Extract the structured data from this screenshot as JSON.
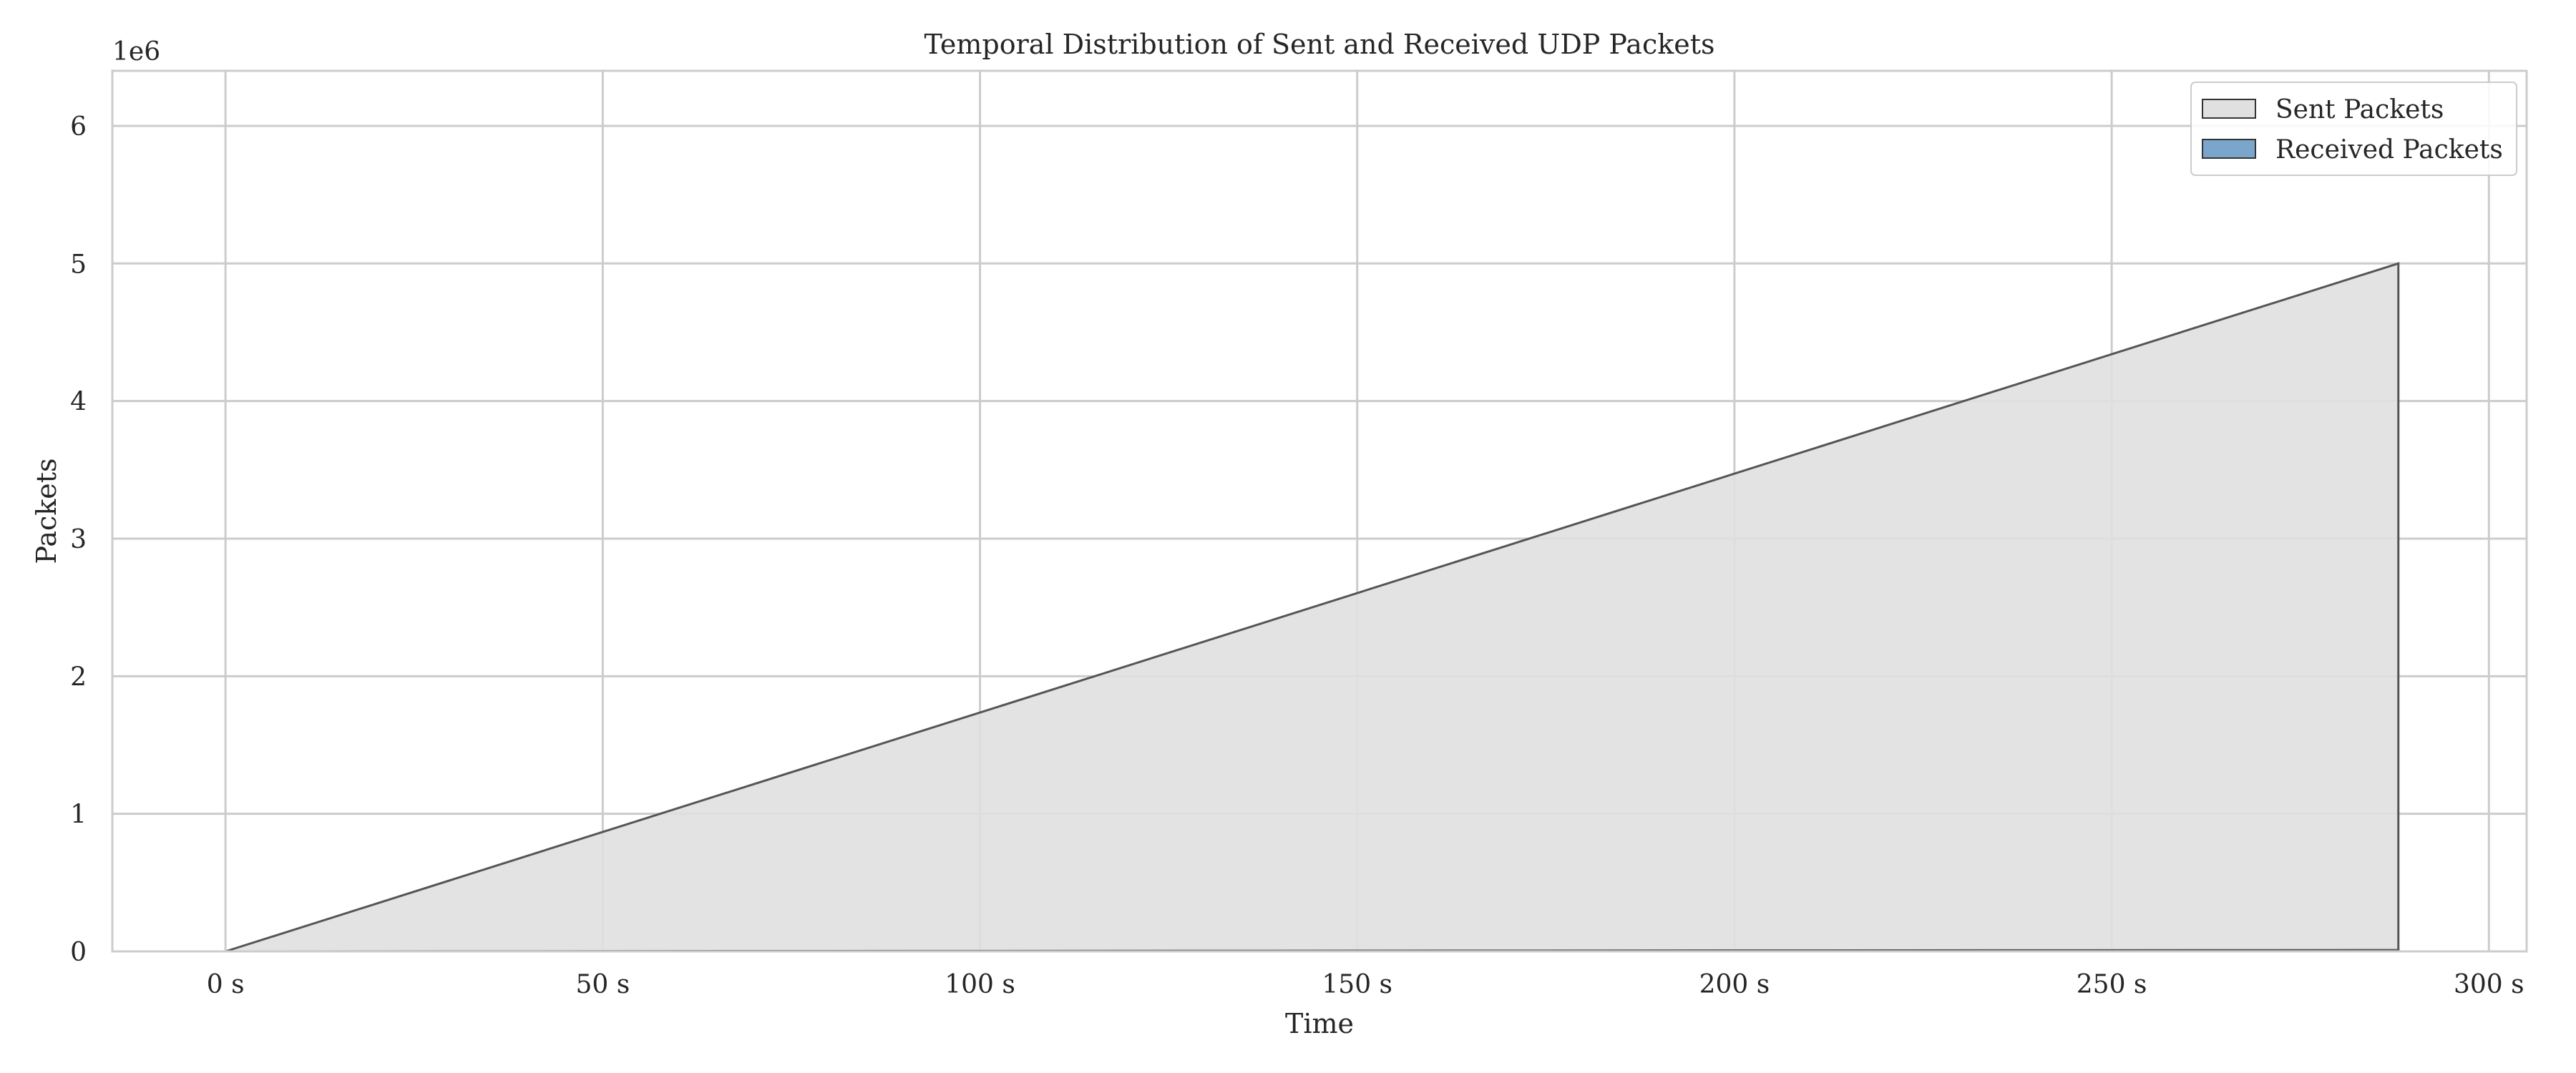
{
  "chart_data": {
    "type": "area",
    "title": "Temporal Distribution of Sent and Received UDP Packets",
    "xlabel": "Time",
    "ylabel": "Packets",
    "y_offset_label": "1e6",
    "xlim": [
      -15,
      305
    ],
    "ylim": [
      0,
      6.4
    ],
    "x_ticks": [
      0,
      50,
      100,
      150,
      200,
      250,
      300
    ],
    "x_tick_labels": [
      "0 s",
      "50 s",
      "100 s",
      "150 s",
      "200 s",
      "250 s",
      "300 s"
    ],
    "y_ticks": [
      0,
      1,
      2,
      3,
      4,
      5,
      6
    ],
    "y_tick_labels": [
      "0",
      "1",
      "2",
      "3",
      "4",
      "5",
      "6"
    ],
    "grid": true,
    "legend_position": "top-right",
    "series": [
      {
        "name": "Sent Packets",
        "fill": "#e0e0e0",
        "stroke": "#555555",
        "x": [
          0,
          288
        ],
        "y": [
          0,
          5.0
        ]
      },
      {
        "name": "Received Packets",
        "fill": "#7aa6cc",
        "stroke": "#555555",
        "x": [
          0,
          288
        ],
        "y": [
          0,
          0.01
        ]
      }
    ]
  }
}
